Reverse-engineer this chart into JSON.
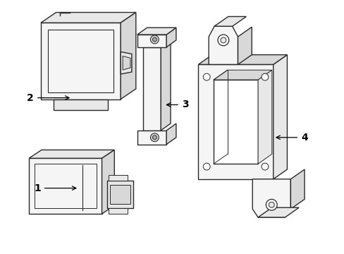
{
  "background_color": "#ffffff",
  "line_color": "#2a2a2a",
  "line_width": 1.0,
  "label_color": "#000000",
  "label_fontsize": 10,
  "figsize": [
    4.89,
    3.6
  ],
  "dpi": 100
}
